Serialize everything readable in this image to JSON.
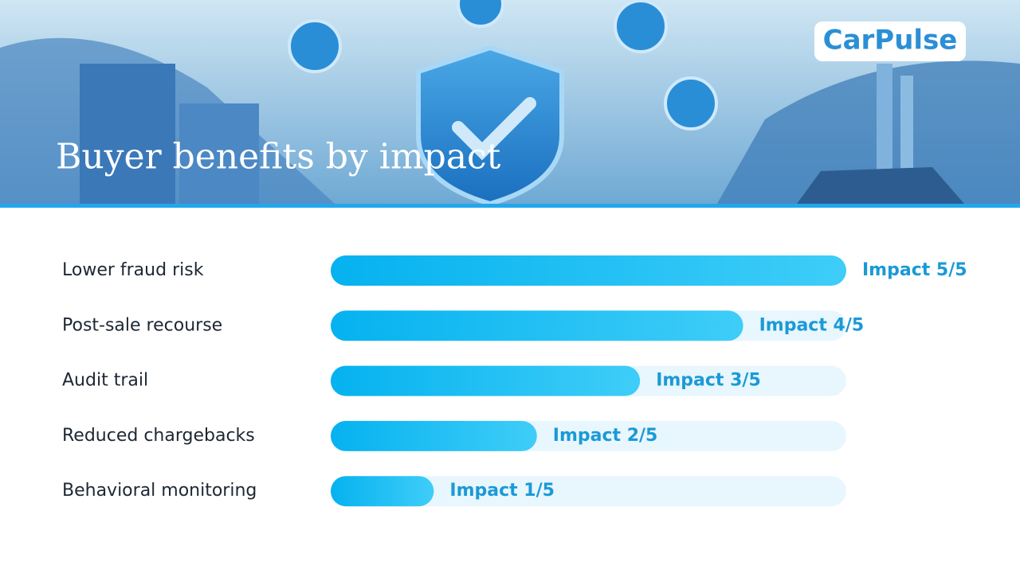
{
  "brand": "CarPulse",
  "chart_data": {
    "type": "hbar",
    "title": "Buyer benefits by impact",
    "categories": [
      "Lower fraud risk",
      "Post-sale recourse",
      "Audit trail",
      "Reduced chargebacks",
      "Behavioral monitoring"
    ],
    "values": [
      5,
      4,
      3,
      2,
      1
    ],
    "value_labels": [
      "Impact 5/5",
      "Impact 4/5",
      "Impact 3/5",
      "Impact 2/5",
      "Impact 1/5"
    ],
    "color": "#10b8f2",
    "track_color": "#e8f6fd",
    "label_color": "#1a9ad6",
    "xlim": [
      0,
      5
    ]
  }
}
